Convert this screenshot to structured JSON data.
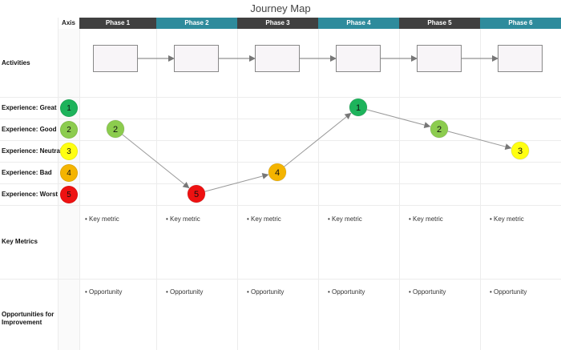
{
  "title": "Journey Map",
  "axis_header": "Axis",
  "phases": [
    "Phase 1",
    "Phase 2",
    "Phase 3",
    "Phase 4",
    "Phase 5",
    "Phase 6"
  ],
  "row_labels": {
    "activities": "Activities",
    "great": "Experience: Great",
    "good": "Experience: Good",
    "neutral": "Experience: Neutral",
    "bad": "Experience: Bad",
    "worst": "Experience: Worst",
    "metrics": "Key Metrics",
    "opportunities": "Opportunities for Improvement"
  },
  "axis_levels": [
    {
      "value": "1",
      "color": "#1db35b"
    },
    {
      "value": "2",
      "color": "#8ccc4e"
    },
    {
      "value": "3",
      "color": "#ffff11"
    },
    {
      "value": "4",
      "color": "#f4b400"
    },
    {
      "value": "5",
      "color": "#ee1111"
    }
  ],
  "journey": [
    {
      "phase": "Phase 1",
      "level": 2
    },
    {
      "phase": "Phase 2",
      "level": 5
    },
    {
      "phase": "Phase 3",
      "level": 4
    },
    {
      "phase": "Phase 4",
      "level": 1
    },
    {
      "phase": "Phase 5",
      "level": 2
    },
    {
      "phase": "Phase 6",
      "level": 3
    }
  ],
  "key_metric_text": [
    "• Key metric",
    "• Key metric",
    "• Key metric",
    "• Key metric",
    "• Key metric",
    "• Key metric"
  ],
  "opportunity_text": [
    "• Opportunity",
    "• Opportunity",
    "• Opportunity",
    "• Opportunity",
    "• Opportunity",
    "• Opportunity"
  ]
}
